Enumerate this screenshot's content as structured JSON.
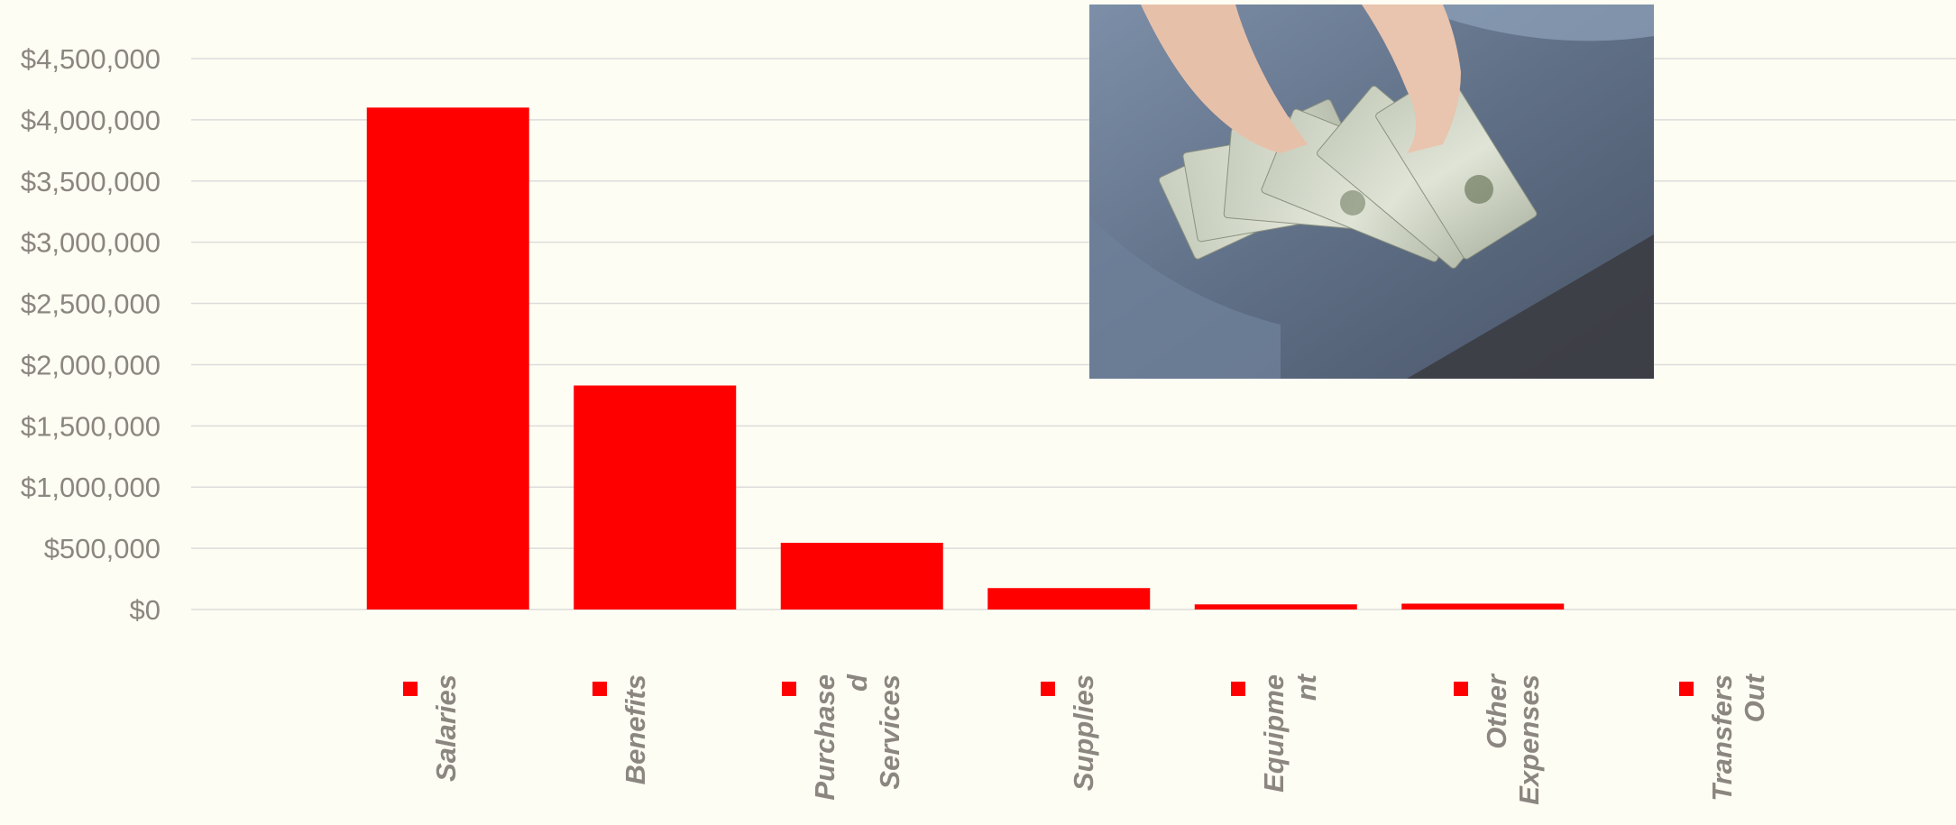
{
  "chart_data": {
    "type": "bar",
    "categories": [
      [
        "Salaries"
      ],
      [
        "Benefits"
      ],
      [
        "Purchase",
        "d",
        "Services"
      ],
      [
        "Supplies"
      ],
      [
        "Equipme",
        "nt"
      ],
      [
        "Other",
        "Expenses"
      ],
      [
        "Transfers",
        "Out"
      ]
    ],
    "values": [
      4100000,
      1830000,
      545000,
      175000,
      42000,
      48000,
      0
    ],
    "yticks": [
      "$0",
      "$500,000",
      "$1,000,000",
      "$1,500,000",
      "$2,000,000",
      "$2,500,000",
      "$3,000,000",
      "$3,500,000",
      "$4,000,000",
      "$4,500,000"
    ],
    "ylim": [
      0,
      4500000
    ],
    "grid": true,
    "legend": "none",
    "colors": {
      "bar": "#ff0000",
      "grid": "#dcdcdc",
      "text": "#8b8680",
      "background": "#fefdf3"
    }
  }
}
